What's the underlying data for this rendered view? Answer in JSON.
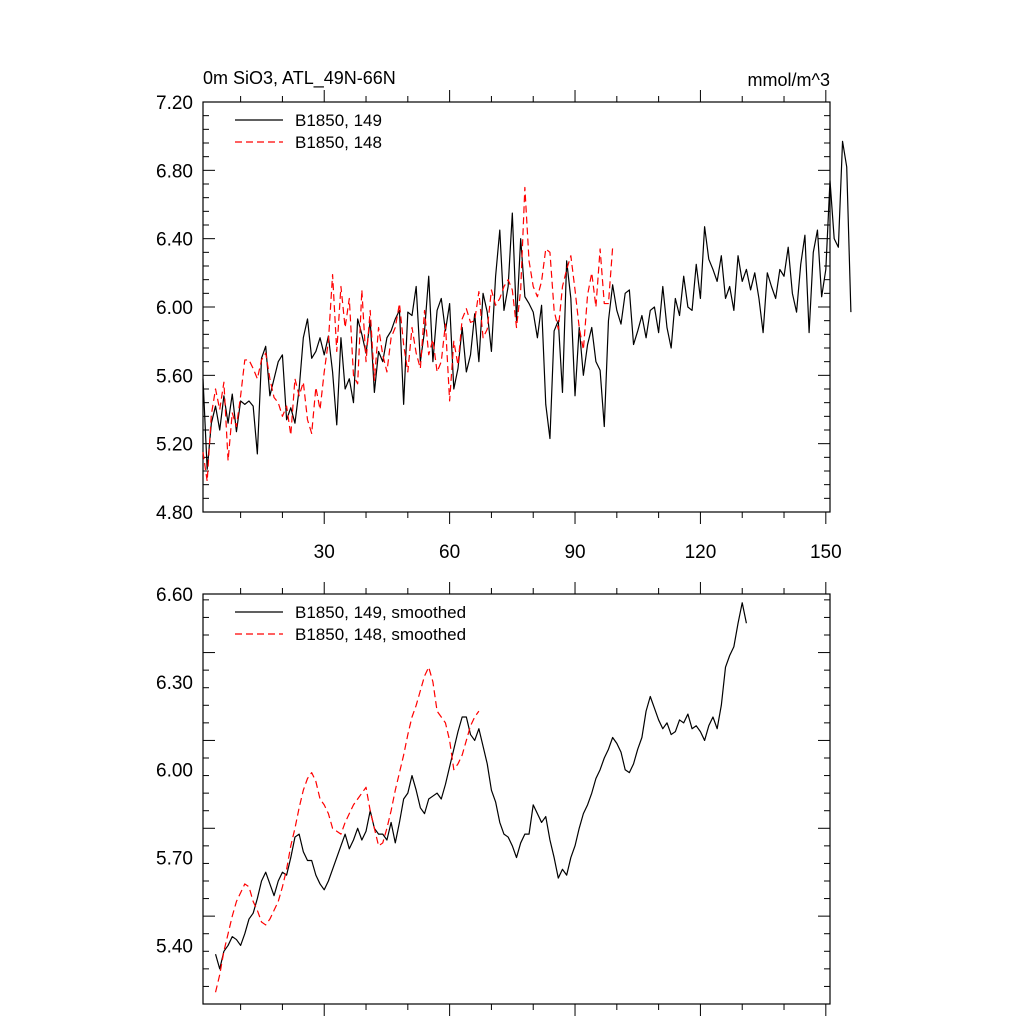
{
  "chart_data": [
    {
      "type": "line",
      "title": "0m SiO3, ATL_49N-66N",
      "units": "mmol/m^3",
      "xlim": [
        1,
        151
      ],
      "ylim": [
        4.8,
        7.2
      ],
      "y_ticks": [
        "7.20",
        "6.80",
        "6.40",
        "6.00",
        "5.60",
        "5.20",
        "4.80"
      ],
      "x_ticks": [
        "30",
        "60",
        "90",
        "120",
        "150"
      ],
      "legend_position": "top-left",
      "series": [
        {
          "name": "B1850, 149",
          "color": "#000000",
          "dash": "solid",
          "x_start": 1,
          "values": [
            5.58,
            5.05,
            5.32,
            5.42,
            5.28,
            5.48,
            5.32,
            5.49,
            5.27,
            5.45,
            5.43,
            5.45,
            5.42,
            5.14,
            5.7,
            5.77,
            5.48,
            5.58,
            5.68,
            5.72,
            5.34,
            5.41,
            5.32,
            5.52,
            5.82,
            5.93,
            5.7,
            5.74,
            5.82,
            5.72,
            5.83,
            5.62,
            5.31,
            5.82,
            5.52,
            5.58,
            5.44,
            5.93,
            5.84,
            5.73,
            5.92,
            5.5,
            5.74,
            5.68,
            5.82,
            5.86,
            5.93,
            5.98,
            5.43,
            5.97,
            5.95,
            6.12,
            5.68,
            5.86,
            6.18,
            5.68,
            5.98,
            6.05,
            5.86,
            6.02,
            5.52,
            5.64,
            5.88,
            5.62,
            5.72,
            5.96,
            5.68,
            6.08,
            5.97,
            5.74,
            6.18,
            6.45,
            5.98,
            6.12,
            6.55,
            5.92,
            6.4,
            6.06,
            6.02,
            5.97,
            5.82,
            6.01,
            5.43,
            5.23,
            5.86,
            5.92,
            5.5,
            6.27,
            6.05,
            5.48,
            5.88,
            5.6,
            5.78,
            5.88,
            5.68,
            5.63,
            5.3,
            5.92,
            6.13,
            5.98,
            5.9,
            6.08,
            6.1,
            5.78,
            5.86,
            5.95,
            5.82,
            5.98,
            6.0,
            5.85,
            6.12,
            5.88,
            5.76,
            6.05,
            5.95,
            6.18,
            6.0,
            5.98,
            6.25,
            6.05,
            6.47,
            6.28,
            6.22,
            6.15,
            6.3,
            6.05,
            6.12,
            5.98,
            6.3,
            6.15,
            6.22,
            6.1,
            6.2,
            6.05,
            5.85,
            6.2,
            6.12,
            6.05,
            6.22,
            6.18,
            6.35,
            6.08,
            5.97,
            6.25,
            6.42,
            5.85,
            6.32,
            6.45,
            6.06,
            6.22,
            6.74,
            6.4,
            6.35,
            6.97,
            6.82,
            5.97
          ]
        },
        {
          "name": "B1850, 148",
          "color": "#ff0000",
          "dash": "dashed",
          "x_start": 1,
          "values": [
            5.15,
            4.98,
            5.37,
            5.52,
            5.4,
            5.56,
            5.1,
            5.38,
            5.3,
            5.48,
            5.69,
            5.69,
            5.64,
            5.58,
            5.69,
            5.73,
            5.58,
            5.47,
            5.44,
            5.36,
            5.42,
            5.25,
            5.58,
            5.48,
            5.56,
            5.34,
            5.26,
            5.53,
            5.4,
            5.62,
            5.8,
            6.19,
            5.74,
            6.12,
            5.88,
            6.05,
            5.6,
            5.55,
            6.1,
            5.68,
            5.98,
            5.57,
            5.88,
            5.72,
            5.62,
            5.82,
            5.88,
            6.02,
            5.78,
            5.62,
            5.88,
            5.73,
            5.64,
            5.98,
            5.72,
            5.81,
            5.62,
            5.68,
            5.9,
            5.45,
            5.8,
            5.66,
            5.93,
            5.99,
            5.91,
            5.92,
            6.09,
            5.82,
            5.87,
            6.1,
            6.01,
            6.05,
            6.12,
            6.16,
            6.1,
            5.88,
            6.1,
            6.7,
            6.27,
            6.12,
            6.06,
            6.15,
            6.34,
            6.32,
            5.98,
            5.87,
            6.12,
            6.22,
            6.3,
            6.1,
            5.88,
            5.75,
            6.07,
            6.2,
            6.0,
            6.34,
            6.02,
            6.02,
            6.35
          ]
        }
      ]
    },
    {
      "type": "line",
      "xlim": [
        1,
        151
      ],
      "ylim": [
        5.2,
        6.6
      ],
      "y_ticks": [
        "6.60",
        "6.30",
        "6.00",
        "5.70",
        "5.40"
      ],
      "legend_position": "top-left",
      "series": [
        {
          "name": "B1850, 149, smoothed",
          "color": "#000000",
          "dash": "solid",
          "x_start": 4,
          "values": [
            5.37,
            5.32,
            5.38,
            5.4,
            5.43,
            5.42,
            5.4,
            5.44,
            5.49,
            5.51,
            5.56,
            5.62,
            5.65,
            5.61,
            5.57,
            5.62,
            5.65,
            5.64,
            5.7,
            5.77,
            5.78,
            5.72,
            5.69,
            5.69,
            5.64,
            5.61,
            5.59,
            5.62,
            5.66,
            5.7,
            5.74,
            5.78,
            5.73,
            5.76,
            5.8,
            5.76,
            5.79,
            5.86,
            5.8,
            5.78,
            5.78,
            5.76,
            5.82,
            5.75,
            5.82,
            5.9,
            5.92,
            5.98,
            5.93,
            5.87,
            5.85,
            5.9,
            5.91,
            5.92,
            5.9,
            5.95,
            6.01,
            6.07,
            6.13,
            6.18,
            6.18,
            6.12,
            6.1,
            6.14,
            6.08,
            6.02,
            5.93,
            5.89,
            5.82,
            5.78,
            5.77,
            5.74,
            5.7,
            5.75,
            5.78,
            5.78,
            5.88,
            5.85,
            5.82,
            5.84,
            5.76,
            5.7,
            5.63,
            5.66,
            5.64,
            5.7,
            5.74,
            5.8,
            5.85,
            5.88,
            5.92,
            5.97,
            6.0,
            6.04,
            6.07,
            6.11,
            6.09,
            6.06,
            6.0,
            5.99,
            6.02,
            6.07,
            6.11,
            6.2,
            6.25,
            6.21,
            6.17,
            6.14,
            6.16,
            6.12,
            6.13,
            6.17,
            6.16,
            6.19,
            6.14,
            6.15,
            6.13,
            6.1,
            6.15,
            6.18,
            6.14,
            6.22,
            6.35,
            6.39,
            6.42,
            6.5,
            6.57,
            6.5
          ]
        },
        {
          "name": "B1850, 148, smoothed",
          "color": "#ff0000",
          "dash": "dashed",
          "x_start": 4,
          "values": [
            5.24,
            5.3,
            5.38,
            5.44,
            5.5,
            5.55,
            5.58,
            5.61,
            5.6,
            5.55,
            5.52,
            5.48,
            5.47,
            5.49,
            5.52,
            5.55,
            5.6,
            5.66,
            5.74,
            5.8,
            5.87,
            5.93,
            5.97,
            5.99,
            5.96,
            5.9,
            5.88,
            5.85,
            5.8,
            5.79,
            5.78,
            5.82,
            5.85,
            5.88,
            5.9,
            5.92,
            5.94,
            5.86,
            5.8,
            5.74,
            5.75,
            5.8,
            5.86,
            5.93,
            5.99,
            6.05,
            6.12,
            6.18,
            6.22,
            6.27,
            6.32,
            6.35,
            6.3,
            6.2,
            6.18,
            6.16,
            6.1,
            6.0,
            6.02,
            6.05,
            6.1,
            6.15,
            6.18,
            6.2
          ]
        }
      ]
    }
  ]
}
